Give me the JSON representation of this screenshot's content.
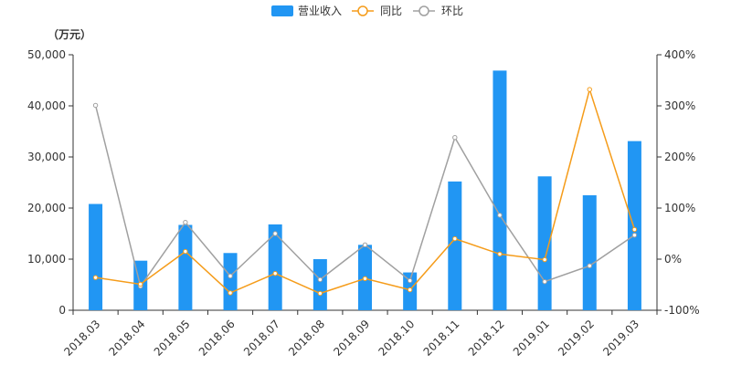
{
  "chart_data": {
    "type": "bar",
    "categories": [
      "2018.03",
      "2018.04",
      "2018.05",
      "2018.06",
      "2018.07",
      "2018.08",
      "2018.09",
      "2018.10",
      "2018.11",
      "2018.12",
      "2019.01",
      "2019.02",
      "2019.03"
    ],
    "unit_label": "（万元）",
    "left_axis": {
      "ylim": [
        0,
        50000
      ],
      "ticks": [
        "0",
        "10,000",
        "20,000",
        "30,000",
        "40,000",
        "50,000"
      ],
      "tick_values": [
        0,
        10000,
        20000,
        30000,
        40000,
        50000
      ]
    },
    "right_axis": {
      "ylim": [
        -100,
        400
      ],
      "ticks": [
        "-100%",
        "0%",
        "100%",
        "200%",
        "300%",
        "400%"
      ],
      "tick_values": [
        -100,
        0,
        100,
        200,
        300,
        400
      ]
    },
    "legend_position": "top-center",
    "series": [
      {
        "name": "营业收入",
        "type": "bar",
        "axis": "left",
        "color": "#2196f3",
        "values": [
          20800,
          9700,
          16700,
          11200,
          16800,
          10000,
          12800,
          7400,
          25200,
          46900,
          26200,
          22500,
          33100
        ]
      },
      {
        "name": "同比",
        "type": "line",
        "axis": "right",
        "color": "#f59c1a",
        "values": [
          -36,
          -49,
          15,
          -66,
          -28,
          -67,
          -38,
          -60,
          40,
          10,
          -1,
          332,
          58
        ]
      },
      {
        "name": "环比",
        "type": "line",
        "axis": "right",
        "color": "#a0a0a0",
        "values": [
          301,
          -53,
          72,
          -33,
          50,
          -40,
          28,
          -42,
          238,
          86,
          -44,
          -13,
          47
        ]
      }
    ]
  }
}
